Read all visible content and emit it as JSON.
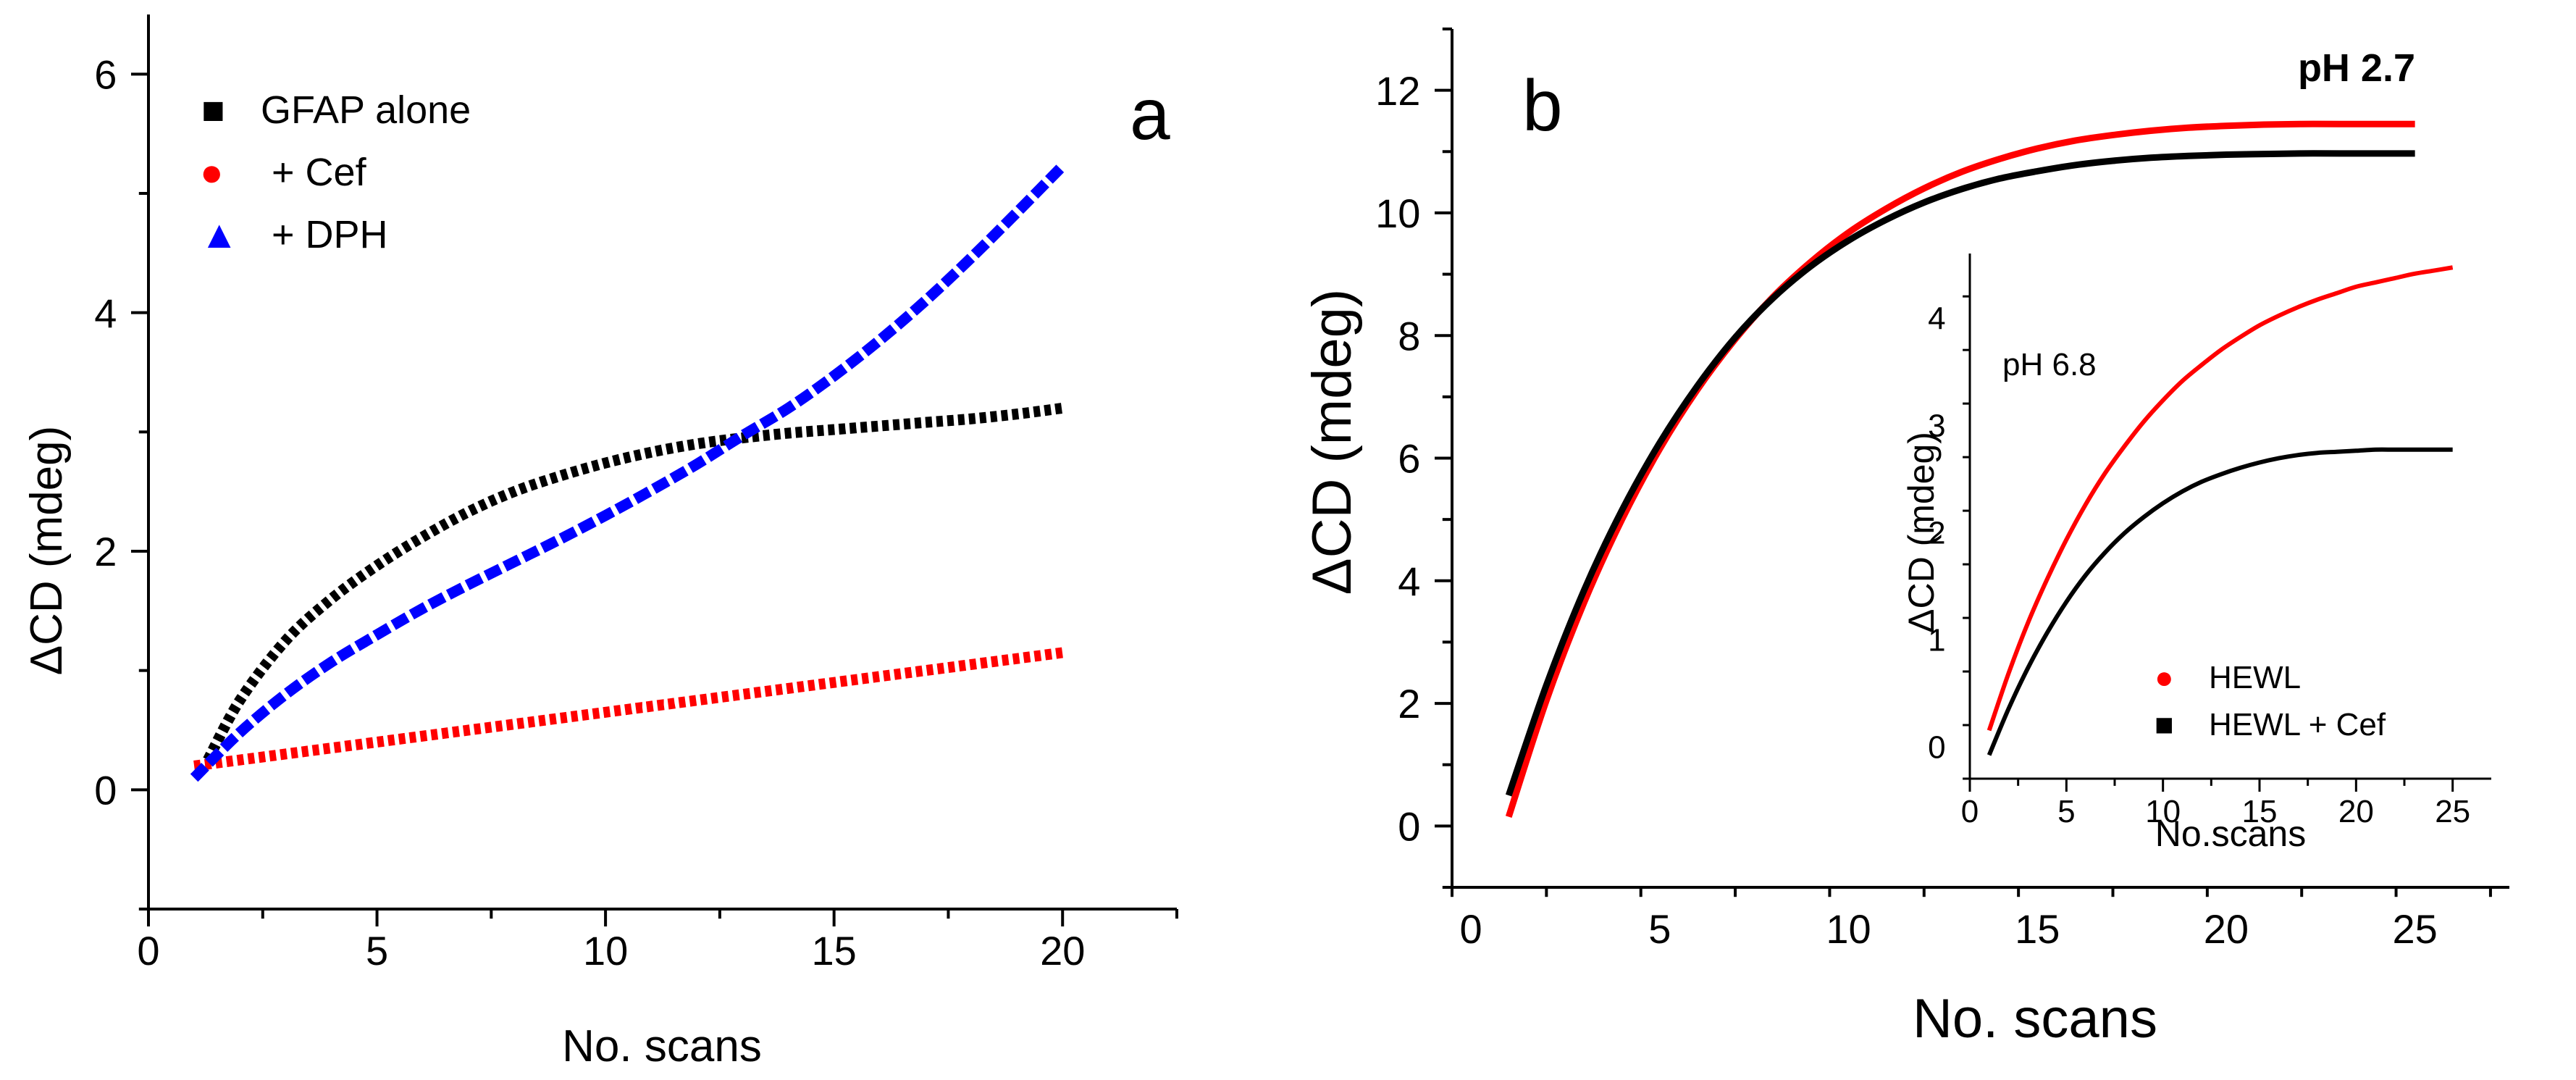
{
  "chart_data": [
    {
      "panel": "a",
      "type": "line",
      "xlabel": "No. scans",
      "ylabel": "ΔCD (mdeg)",
      "xlim": [
        0,
        22.5
      ],
      "ylim": [
        -1,
        6.5
      ],
      "xticks": [
        0,
        5,
        10,
        15,
        20
      ],
      "yticks": [
        0,
        2,
        4,
        6
      ],
      "series": [
        {
          "name": "GFAP alone",
          "color": "#000000",
          "marker": "■",
          "style": "dotted",
          "x": [
            1.3,
            2,
            3,
            4,
            5,
            6,
            7,
            8,
            9,
            10,
            11,
            12,
            13,
            14,
            15,
            16,
            17,
            18,
            19,
            20
          ],
          "y": [
            0.25,
            0.75,
            1.25,
            1.6,
            1.88,
            2.12,
            2.33,
            2.5,
            2.63,
            2.74,
            2.83,
            2.9,
            2.95,
            2.99,
            3.02,
            3.05,
            3.08,
            3.11,
            3.15,
            3.2
          ]
        },
        {
          "name": "+ Cef",
          "color": "#ff0000",
          "marker": "●",
          "style": "dotted",
          "x": [
            1,
            5,
            10,
            15,
            20
          ],
          "y": [
            0.2,
            0.4,
            0.65,
            0.9,
            1.15
          ]
        },
        {
          "name": "+ DPH",
          "color": "#0000ff",
          "marker": "▲",
          "style": "dashed",
          "x": [
            1,
            2,
            3,
            4,
            5,
            6,
            7,
            8,
            9,
            10,
            11,
            12,
            13,
            14,
            15,
            16,
            17,
            18,
            19,
            20
          ],
          "y": [
            0.1,
            0.48,
            0.8,
            1.07,
            1.3,
            1.52,
            1.72,
            1.91,
            2.1,
            2.3,
            2.51,
            2.73,
            2.97,
            3.2,
            3.47,
            3.77,
            4.1,
            4.46,
            4.84,
            5.23
          ]
        }
      ]
    },
    {
      "panel": "b",
      "type": "line",
      "annotation": "pH 2.7",
      "xlabel": "No. scans",
      "ylabel": "ΔCD (mdeg)",
      "xlim": [
        -0.5,
        27.5
      ],
      "ylim": [
        -1,
        13
      ],
      "xticks": [
        0,
        5,
        10,
        15,
        20,
        25
      ],
      "yticks": [
        0,
        2,
        4,
        6,
        8,
        10,
        12
      ],
      "series": [
        {
          "name": "HEWL",
          "color": "#ff0000",
          "x": [
            1,
            2,
            3,
            4,
            5,
            6,
            7,
            8,
            9,
            10,
            11,
            12,
            13,
            14,
            15,
            16,
            17,
            18,
            19,
            20,
            21,
            22,
            23,
            24,
            25
          ],
          "y": [
            0.15,
            2.05,
            3.65,
            5.0,
            6.15,
            7.12,
            7.94,
            8.63,
            9.2,
            9.68,
            10.07,
            10.4,
            10.67,
            10.88,
            11.05,
            11.18,
            11.27,
            11.34,
            11.39,
            11.42,
            11.44,
            11.45,
            11.45,
            11.45,
            11.45
          ]
        },
        {
          "name": "HEWL + Cef",
          "color": "#000000",
          "x": [
            1,
            2,
            3,
            4,
            5,
            6,
            7,
            8,
            9,
            10,
            11,
            12,
            13,
            14,
            15,
            16,
            17,
            18,
            19,
            20,
            21,
            22,
            23,
            24,
            25
          ],
          "y": [
            0.5,
            2.3,
            3.85,
            5.15,
            6.25,
            7.18,
            7.97,
            8.61,
            9.13,
            9.55,
            9.89,
            10.17,
            10.39,
            10.56,
            10.68,
            10.78,
            10.85,
            10.9,
            10.93,
            10.95,
            10.96,
            10.97,
            10.97,
            10.97,
            10.97
          ]
        }
      ],
      "inset": {
        "type": "line",
        "annotation": "pH 6.8",
        "xlabel": "No.scans",
        "ylabel": "ΔCD (mdeg)",
        "xlim": [
          0,
          27
        ],
        "ylim": [
          -0.3,
          4.6
        ],
        "xticks": [
          0,
          5,
          10,
          15,
          20,
          25
        ],
        "yticks": [
          0,
          1,
          2,
          3,
          4
        ],
        "series": [
          {
            "name": "HEWL",
            "color": "#ff0000",
            "marker": "●",
            "x": [
              1,
              2,
              3,
              4,
              5,
              6,
              7,
              8,
              9,
              10,
              11,
              12,
              13,
              14,
              15,
              16,
              17,
              18,
              19,
              20,
              21,
              22,
              23,
              24,
              25
            ],
            "y": [
              0.15,
              0.68,
              1.15,
              1.56,
              1.93,
              2.26,
              2.55,
              2.8,
              3.03,
              3.23,
              3.41,
              3.56,
              3.7,
              3.82,
              3.93,
              4.02,
              4.1,
              4.17,
              4.23,
              4.29,
              4.33,
              4.37,
              4.41,
              4.44,
              4.47
            ]
          },
          {
            "name": "HEWL + Cef",
            "color": "#000000",
            "marker": "■",
            "x": [
              1,
              2,
              3,
              4,
              5,
              6,
              7,
              8,
              9,
              10,
              11,
              12,
              13,
              14,
              15,
              16,
              17,
              18,
              19,
              20,
              21,
              22,
              23,
              24,
              25
            ],
            "y": [
              -0.08,
              0.35,
              0.73,
              1.06,
              1.35,
              1.6,
              1.81,
              1.99,
              2.14,
              2.27,
              2.38,
              2.47,
              2.54,
              2.6,
              2.65,
              2.69,
              2.72,
              2.74,
              2.75,
              2.76,
              2.77,
              2.77,
              2.77,
              2.77,
              2.77
            ]
          }
        ]
      }
    }
  ]
}
